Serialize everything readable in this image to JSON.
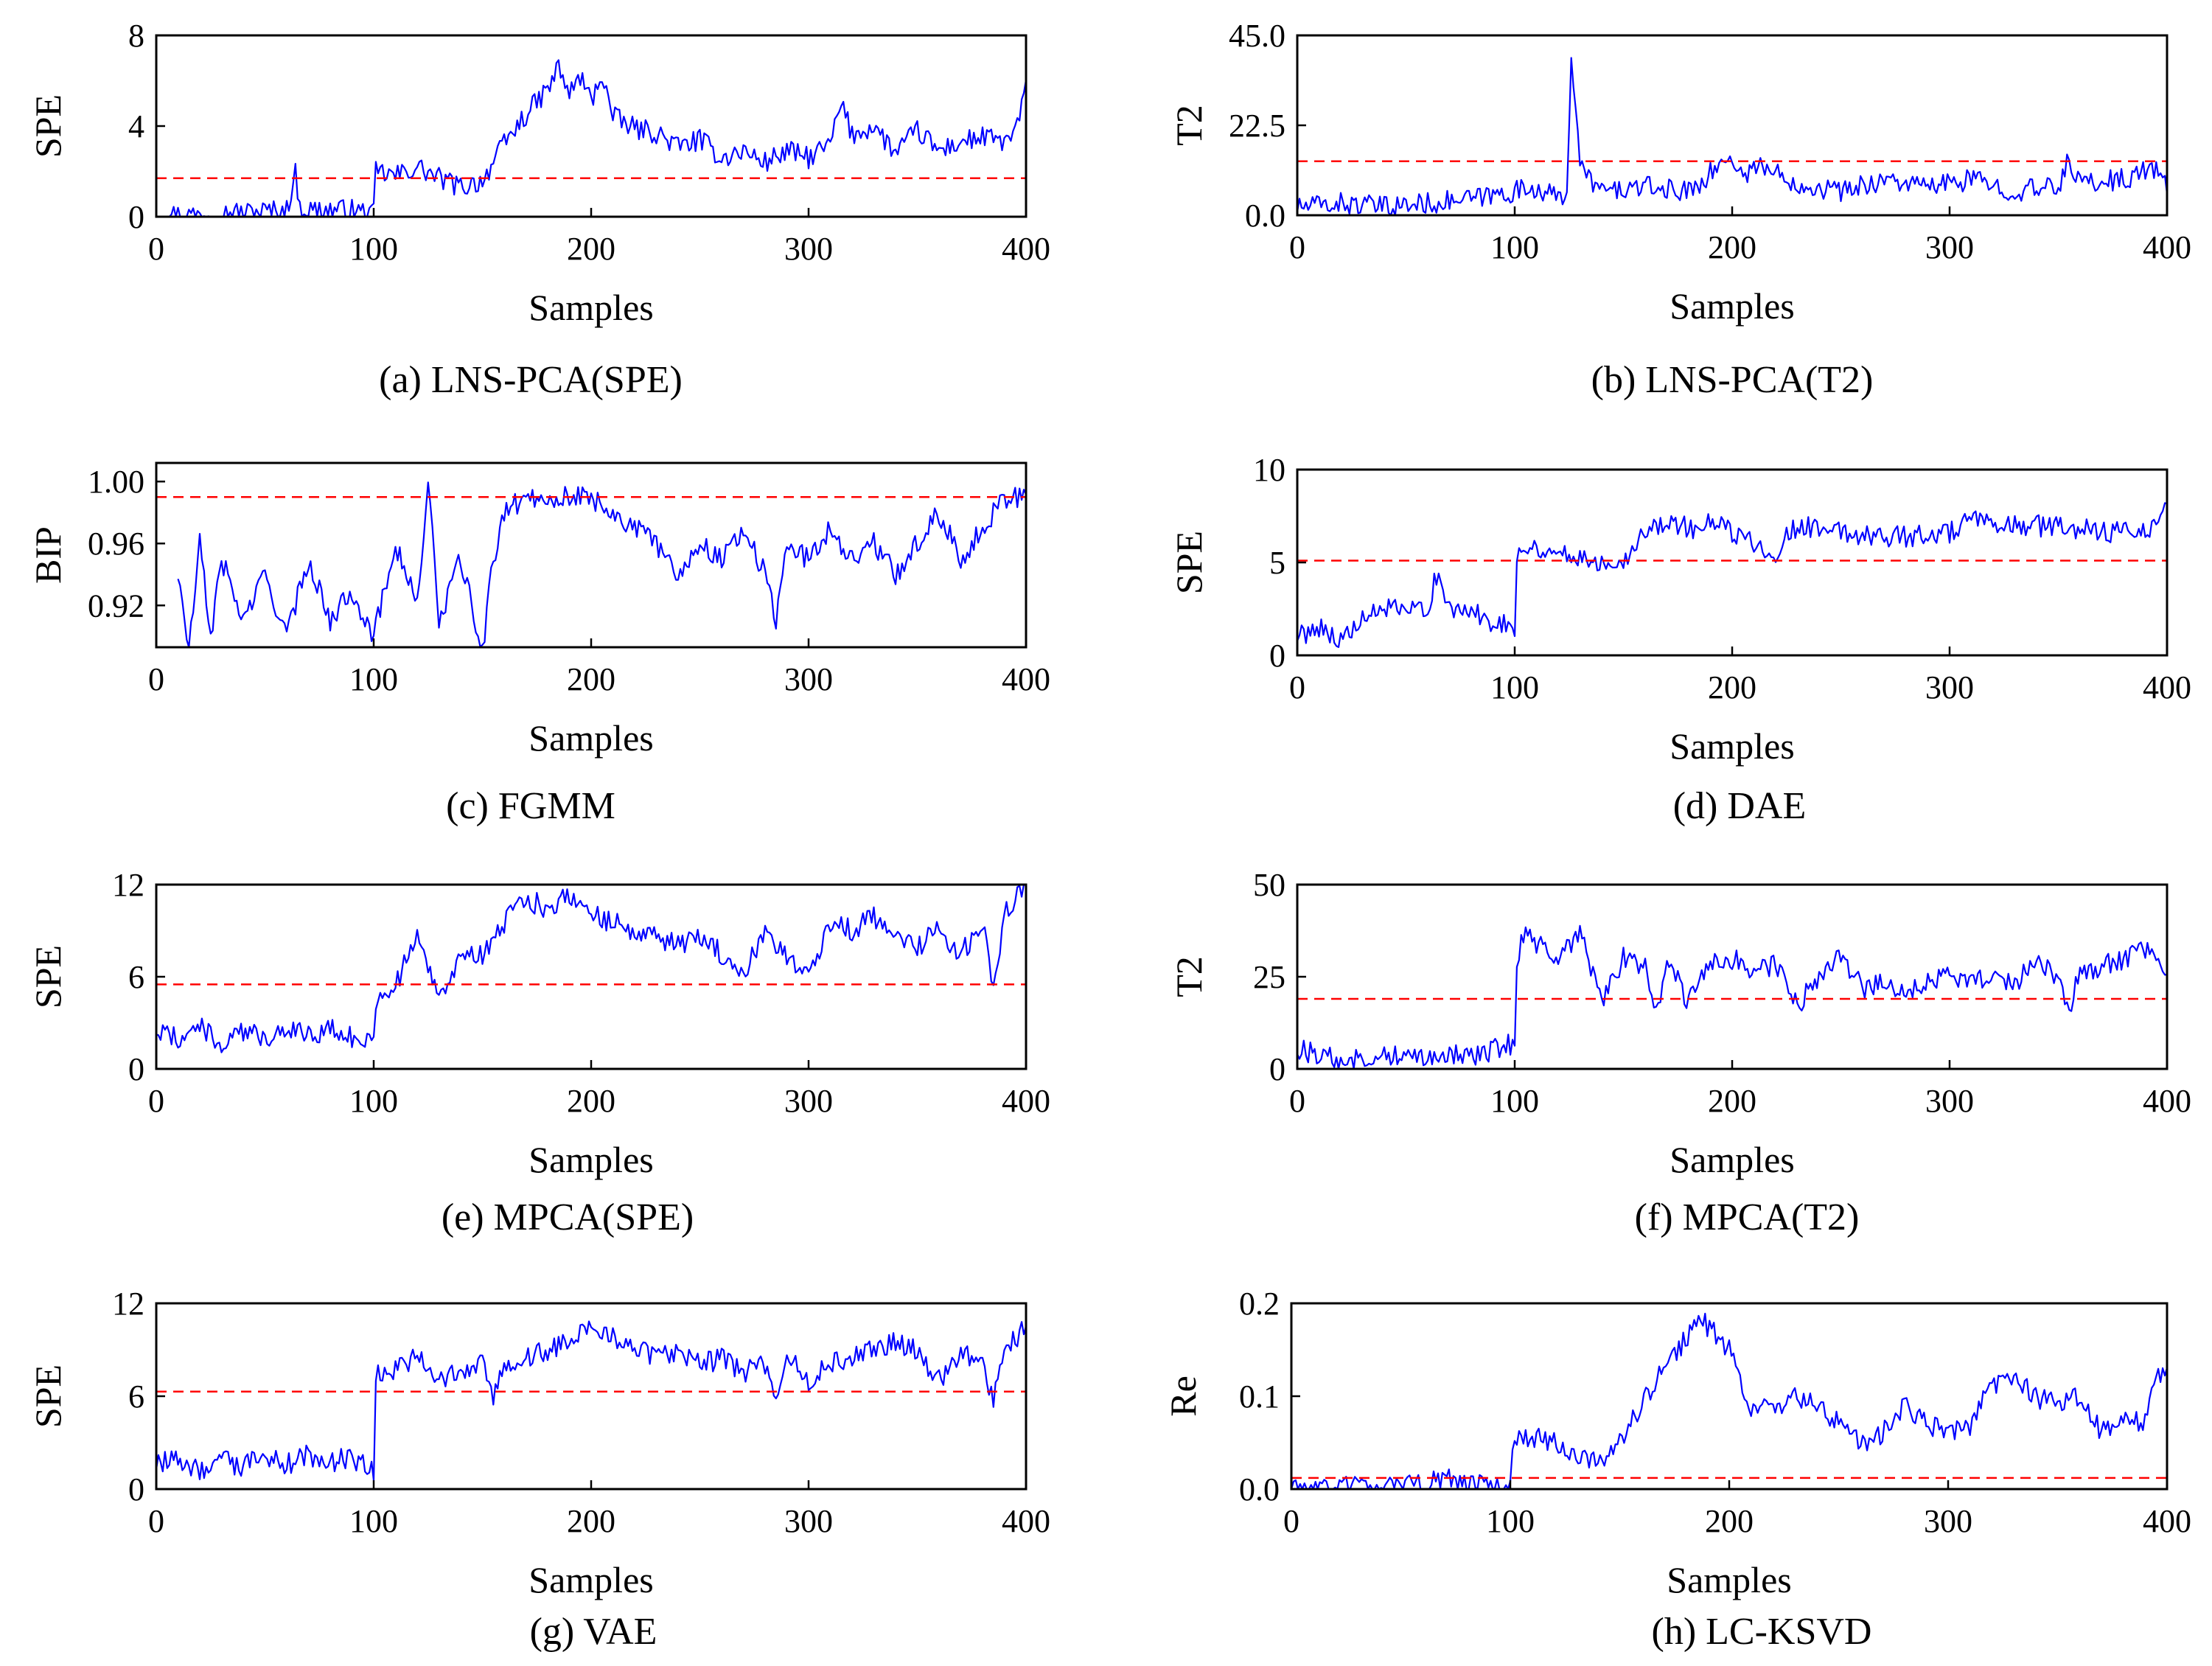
{
  "chart_data": [
    {
      "id": "a",
      "type": "line",
      "caption": "(a) LNS-PCA(SPE)",
      "xlabel": "Samples",
      "ylabel": "SPE",
      "xlim": [
        0,
        400
      ],
      "ylim": [
        0,
        8
      ],
      "xticks": [
        "0",
        "100",
        "200",
        "300",
        "400"
      ],
      "yticks": [
        "0",
        "4",
        "8"
      ],
      "threshold": 1.7,
      "series": [
        {
          "name": "SPE",
          "x": [
            0,
            20,
            40,
            60,
            64,
            66,
            70,
            90,
            100,
            101,
            110,
            120,
            130,
            140,
            150,
            160,
            170,
            180,
            185,
            190,
            195,
            200,
            205,
            210,
            220,
            230,
            240,
            250,
            260,
            270,
            280,
            290,
            300,
            310,
            315,
            320,
            330,
            340,
            350,
            360,
            370,
            380,
            390,
            395,
            400
          ],
          "y": [
            0.1,
            0.1,
            0.2,
            0.3,
            1.9,
            0.4,
            0.3,
            0.3,
            0.1,
            2.0,
            1.8,
            2.2,
            1.7,
            1.3,
            1.6,
            3.2,
            4.5,
            5.6,
            6.6,
            5.4,
            6.2,
            5.1,
            6.3,
            4.4,
            3.9,
            3.7,
            3.1,
            3.4,
            2.6,
            2.9,
            2.4,
            2.9,
            2.6,
            3.2,
            5.0,
            3.6,
            4.0,
            2.8,
            3.8,
            2.9,
            3.3,
            3.5,
            3.3,
            3.7,
            5.6
          ]
        }
      ]
    },
    {
      "id": "b",
      "type": "line",
      "caption": "(b) LNS-PCA(T2)",
      "xlabel": "Samples",
      "ylabel": "T2",
      "xlim": [
        0,
        400
      ],
      "ylim": [
        0,
        45
      ],
      "xticks": [
        "0",
        "100",
        "200",
        "300",
        "400"
      ],
      "yticks": [
        "0.0",
        "22.5",
        "45.0"
      ],
      "threshold": 13.5,
      "series": [
        {
          "name": "T2",
          "x": [
            0,
            20,
            40,
            60,
            80,
            100,
            110,
            120,
            124,
            126,
            130,
            140,
            160,
            180,
            200,
            205,
            210,
            230,
            250,
            270,
            290,
            310,
            330,
            350,
            355,
            360,
            380,
            395,
            400
          ],
          "y": [
            2,
            3,
            2,
            3,
            4,
            6,
            7,
            4,
            6,
            41,
            12,
            6,
            7,
            6,
            15,
            9,
            13,
            8,
            6,
            9,
            7,
            9,
            6,
            7,
            14,
            8,
            9,
            12,
            6
          ]
        }
      ]
    },
    {
      "id": "c",
      "type": "line",
      "caption": "(c) FGMM",
      "xlabel": "Samples",
      "ylabel": "BIP",
      "xlim": [
        0,
        400
      ],
      "ylim": [
        0.893,
        1.012
      ],
      "xticks": [
        "0",
        "100",
        "200",
        "300",
        "400"
      ],
      "yticks": [
        "0.92",
        "0.96",
        "1.00"
      ],
      "threshold": 0.99,
      "series": [
        {
          "name": "BIP",
          "x": [
            10,
            15,
            20,
            25,
            30,
            40,
            50,
            60,
            70,
            80,
            90,
            100,
            110,
            120,
            125,
            130,
            140,
            150,
            155,
            160,
            170,
            180,
            190,
            200,
            210,
            220,
            230,
            240,
            250,
            260,
            270,
            280,
            285,
            290,
            300,
            310,
            320,
            330,
            340,
            350,
            360,
            370,
            380,
            390,
            400
          ],
          "y": [
            0.94,
            0.89,
            0.96,
            0.9,
            0.95,
            0.91,
            0.94,
            0.9,
            0.95,
            0.91,
            0.93,
            0.9,
            0.96,
            0.92,
            1.0,
            0.91,
            0.95,
            0.89,
            0.95,
            0.98,
            0.99,
            0.99,
            0.99,
            0.99,
            0.98,
            0.97,
            0.96,
            0.94,
            0.96,
            0.95,
            0.97,
            0.94,
            0.91,
            0.96,
            0.95,
            0.97,
            0.95,
            0.96,
            0.94,
            0.96,
            0.98,
            0.95,
            0.97,
            0.99,
            0.99
          ]
        }
      ]
    },
    {
      "id": "d",
      "type": "line",
      "caption": "(d) DAE",
      "xlabel": "Samples",
      "ylabel": "SPE",
      "xlim": [
        0,
        400
      ],
      "ylim": [
        0,
        10
      ],
      "xticks": [
        "0",
        "100",
        "200",
        "300",
        "400"
      ],
      "yticks": [
        "0",
        "5",
        "10"
      ],
      "threshold": 5.1,
      "series": [
        {
          "name": "SPE",
          "x": [
            0,
            10,
            20,
            30,
            40,
            50,
            60,
            65,
            70,
            80,
            90,
            100,
            101,
            110,
            120,
            130,
            140,
            150,
            160,
            170,
            180,
            190,
            200,
            210,
            220,
            230,
            240,
            260,
            280,
            300,
            310,
            320,
            340,
            360,
            380,
            395,
            400
          ],
          "y": [
            1.0,
            1.6,
            0.8,
            1.8,
            2.6,
            2.2,
            2.7,
            4.6,
            2.3,
            2.4,
            1.8,
            1.6,
            5.6,
            5.8,
            5.5,
            5.3,
            5.0,
            5.2,
            6.6,
            7.3,
            6.8,
            7.1,
            6.6,
            6.1,
            5.6,
            7.0,
            6.8,
            6.5,
            6.4,
            6.6,
            7.3,
            6.9,
            7.0,
            6.8,
            6.6,
            7.0,
            8.5
          ]
        }
      ]
    },
    {
      "id": "e",
      "type": "line",
      "caption": "(e) MPCA(SPE)",
      "xlabel": "Samples",
      "ylabel": "SPE",
      "xlim": [
        0,
        400
      ],
      "ylim": [
        0,
        12
      ],
      "xticks": [
        "0",
        "100",
        "200",
        "300",
        "400"
      ],
      "yticks": [
        "0",
        "6",
        "12"
      ],
      "threshold": 5.5,
      "series": [
        {
          "name": "SPE",
          "x": [
            0,
            10,
            20,
            30,
            40,
            50,
            60,
            70,
            80,
            90,
            100,
            101,
            110,
            120,
            130,
            140,
            150,
            160,
            170,
            180,
            190,
            200,
            210,
            220,
            230,
            240,
            250,
            260,
            270,
            280,
            290,
            300,
            310,
            320,
            330,
            340,
            350,
            360,
            370,
            380,
            385,
            390,
            400
          ],
          "y": [
            2.5,
            2.0,
            2.8,
            1.5,
            2.4,
            2.0,
            2.8,
            2.2,
            2.6,
            2.0,
            1.8,
            4.5,
            5.5,
            8.5,
            5.0,
            7.0,
            7.5,
            9.5,
            11.0,
            10.5,
            11.5,
            10.0,
            9.5,
            9.0,
            8.5,
            8.0,
            8.5,
            7.5,
            6.0,
            9.0,
            7.5,
            6.0,
            9.5,
            9.0,
            10.0,
            8.5,
            8.0,
            9.0,
            7.5,
            9.5,
            5.5,
            10.0,
            12.0
          ]
        }
      ]
    },
    {
      "id": "f",
      "type": "line",
      "caption": "(f) MPCA(T2)",
      "xlabel": "Samples",
      "ylabel": "T2",
      "xlim": [
        0,
        400
      ],
      "ylim": [
        0,
        50
      ],
      "xticks": [
        "0",
        "100",
        "200",
        "300",
        "400"
      ],
      "yticks": [
        "0",
        "25",
        "50"
      ],
      "threshold": 19,
      "series": [
        {
          "name": "T2",
          "x": [
            0,
            10,
            20,
            30,
            40,
            50,
            60,
            70,
            80,
            90,
            100,
            101,
            105,
            110,
            120,
            130,
            135,
            140,
            150,
            160,
            165,
            170,
            180,
            190,
            200,
            210,
            220,
            230,
            240,
            250,
            260,
            270,
            280,
            290,
            300,
            310,
            320,
            330,
            340,
            350,
            355,
            360,
            370,
            380,
            390,
            400
          ],
          "y": [
            5,
            4,
            2,
            3,
            4,
            3,
            4,
            4,
            3,
            5,
            7,
            30,
            38,
            34,
            30,
            36,
            28,
            18,
            30,
            28,
            14,
            30,
            18,
            28,
            30,
            27,
            28,
            17,
            25,
            30,
            22,
            24,
            20,
            24,
            26,
            24,
            25,
            23,
            30,
            24,
            16,
            26,
            28,
            30,
            33,
            28
          ]
        }
      ]
    },
    {
      "id": "g",
      "type": "line",
      "caption": "(g) VAE",
      "xlabel": "Samples",
      "ylabel": "SPE",
      "xlim": [
        0,
        400
      ],
      "ylim": [
        0,
        12
      ],
      "xticks": [
        "0",
        "100",
        "200",
        "300",
        "400"
      ],
      "yticks": [
        "0",
        "6",
        "12"
      ],
      "threshold": 6.3,
      "series": [
        {
          "name": "SPE",
          "x": [
            0,
            10,
            20,
            30,
            40,
            50,
            60,
            70,
            80,
            90,
            100,
            101,
            110,
            120,
            130,
            140,
            150,
            155,
            160,
            170,
            180,
            190,
            200,
            210,
            220,
            230,
            240,
            250,
            260,
            270,
            280,
            285,
            290,
            300,
            310,
            320,
            330,
            340,
            350,
            360,
            370,
            380,
            385,
            390,
            400
          ],
          "y": [
            1.5,
            2.0,
            1.2,
            1.8,
            1.5,
            2.0,
            1.6,
            2.2,
            1.8,
            2.0,
            1.2,
            7.5,
            7.8,
            8.5,
            7.0,
            7.5,
            8.0,
            6.0,
            8.0,
            8.5,
            9.0,
            9.5,
            10.5,
            10.0,
            9.0,
            8.5,
            9.0,
            8.0,
            8.5,
            7.5,
            8.0,
            5.5,
            8.5,
            7.0,
            8.0,
            8.5,
            9.0,
            9.5,
            9.0,
            7.0,
            9.0,
            8.0,
            6.0,
            9.0,
            10.5
          ]
        }
      ]
    },
    {
      "id": "h",
      "type": "line",
      "caption": "(h) LC-KSVD",
      "xlabel": "Samples",
      "ylabel": "Re",
      "xlim": [
        0,
        400
      ],
      "ylim": [
        0,
        0.2
      ],
      "xticks": [
        "0",
        "100",
        "200",
        "300",
        "400"
      ],
      "yticks": [
        "0.0",
        "0.1",
        "0.2"
      ],
      "threshold": 0.012,
      "series": [
        {
          "name": "Re",
          "x": [
            0,
            20,
            40,
            60,
            70,
            80,
            100,
            101,
            110,
            120,
            130,
            140,
            150,
            160,
            170,
            180,
            185,
            190,
            200,
            210,
            220,
            230,
            240,
            250,
            260,
            270,
            280,
            290,
            300,
            310,
            320,
            330,
            340,
            350,
            360,
            370,
            380,
            390,
            395,
            400
          ],
          "y": [
            0.002,
            0.001,
            0.003,
            0.004,
            0.012,
            0.004,
            0.003,
            0.05,
            0.055,
            0.05,
            0.04,
            0.025,
            0.05,
            0.09,
            0.13,
            0.16,
            0.185,
            0.175,
            0.15,
            0.09,
            0.085,
            0.1,
            0.09,
            0.07,
            0.05,
            0.06,
            0.09,
            0.07,
            0.06,
            0.07,
            0.11,
            0.12,
            0.1,
            0.09,
            0.1,
            0.06,
            0.08,
            0.07,
            0.13,
            0.12
          ]
        }
      ]
    }
  ]
}
